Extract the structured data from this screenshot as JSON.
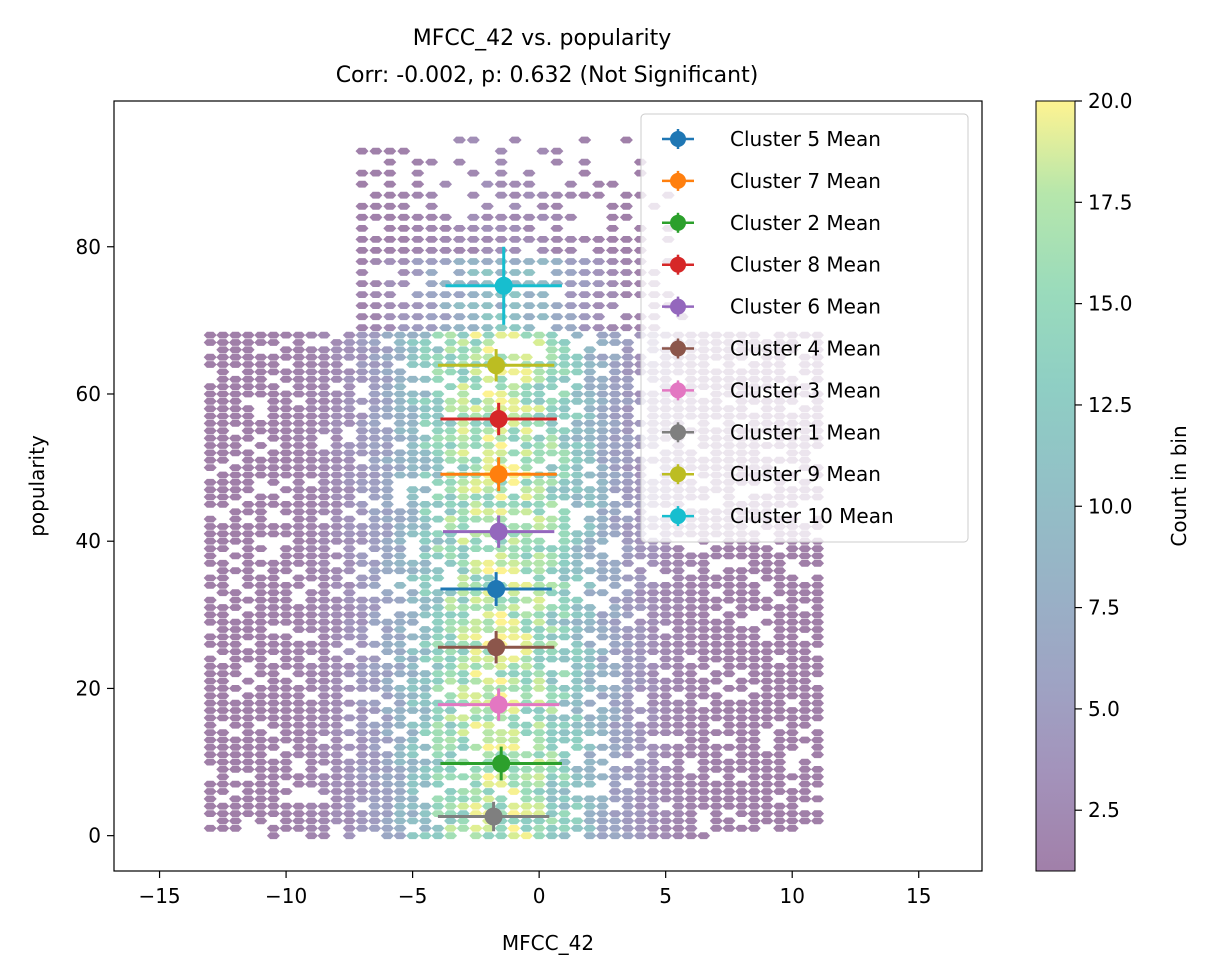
{
  "chart_data": {
    "type": "scatter",
    "title": "MFCC_42 vs. popularity",
    "subtitle": "Corr: -0.002, p: 0.632 (Not Significant)",
    "xlabel": "MFCC_42",
    "ylabel": "popularity",
    "xlim": [
      -16.8,
      17.5
    ],
    "ylim": [
      -4.8,
      99.8
    ],
    "x_ticks": [
      {
        "value": -15,
        "label": "−15"
      },
      {
        "value": -10,
        "label": "−10"
      },
      {
        "value": -5,
        "label": "−5"
      },
      {
        "value": 0,
        "label": "0"
      },
      {
        "value": 5,
        "label": "5"
      },
      {
        "value": 10,
        "label": "10"
      },
      {
        "value": 15,
        "label": "15"
      }
    ],
    "y_ticks": [
      {
        "value": 0,
        "label": "0"
      },
      {
        "value": 20,
        "label": "20"
      },
      {
        "value": 40,
        "label": "40"
      },
      {
        "value": 60,
        "label": "60"
      },
      {
        "value": 80,
        "label": "80"
      }
    ],
    "grid": false,
    "hexbin": {
      "colormap": "viridis",
      "alpha": 0.5,
      "min_count": 1,
      "max_count": 20,
      "x_center": -1.6,
      "x_spread": 3.4
    },
    "colorbar": {
      "label": "Count in bin",
      "min": 1,
      "max": 20,
      "ticks": [
        {
          "value": 2.5,
          "label": "2.5"
        },
        {
          "value": 5.0,
          "label": "5.0"
        },
        {
          "value": 7.5,
          "label": "7.5"
        },
        {
          "value": 10.0,
          "label": "10.0"
        },
        {
          "value": 12.5,
          "label": "12.5"
        },
        {
          "value": 15.0,
          "label": "15.0"
        },
        {
          "value": 17.5,
          "label": "17.5"
        },
        {
          "value": 20.0,
          "label": "20.0"
        }
      ]
    },
    "legend_position": "top-right",
    "series": [
      {
        "name": "Cluster 5 Mean",
        "color": "#1f77b4",
        "x": -1.7,
        "y": 33.5,
        "xerr": 2.2,
        "yerr": 2.3
      },
      {
        "name": "Cluster 7 Mean",
        "color": "#ff7f0e",
        "x": -1.6,
        "y": 49.1,
        "xerr": 2.3,
        "yerr": 2.3
      },
      {
        "name": "Cluster 2 Mean",
        "color": "#2ca02c",
        "x": -1.5,
        "y": 9.8,
        "xerr": 2.4,
        "yerr": 2.3
      },
      {
        "name": "Cluster 8 Mean",
        "color": "#d62728",
        "x": -1.6,
        "y": 56.6,
        "xerr": 2.3,
        "yerr": 2.2
      },
      {
        "name": "Cluster 6 Mean",
        "color": "#9467bd",
        "x": -1.6,
        "y": 41.3,
        "xerr": 2.2,
        "yerr": 2.2
      },
      {
        "name": "Cluster 4 Mean",
        "color": "#8c564b",
        "x": -1.7,
        "y": 25.6,
        "xerr": 2.3,
        "yerr": 2.2
      },
      {
        "name": "Cluster 3 Mean",
        "color": "#e377c2",
        "x": -1.6,
        "y": 17.8,
        "xerr": 2.4,
        "yerr": 2.2
      },
      {
        "name": "Cluster 1 Mean",
        "color": "#7f7f7f",
        "x": -1.8,
        "y": 2.6,
        "xerr": 2.2,
        "yerr": 2.0
      },
      {
        "name": "Cluster 9 Mean",
        "color": "#bcbd22",
        "x": -1.7,
        "y": 63.9,
        "xerr": 2.3,
        "yerr": 2.2
      },
      {
        "name": "Cluster 10 Mean",
        "color": "#17becf",
        "x": -1.4,
        "y": 74.7,
        "xerr": 2.3,
        "yerr": 5.3
      }
    ]
  }
}
